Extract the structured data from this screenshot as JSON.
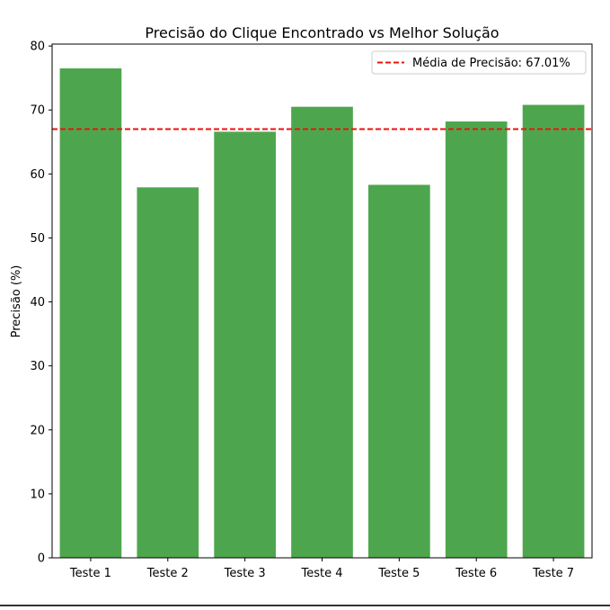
{
  "chart_data": {
    "type": "bar",
    "title": "Precisão do Clique Encontrado vs Melhor Solução",
    "xlabel": "",
    "ylabel": "Precisão (%)",
    "categories": [
      "Teste 1",
      "Teste 2",
      "Teste 3",
      "Teste 4",
      "Teste 5",
      "Teste 6",
      "Teste 7"
    ],
    "values": [
      76.5,
      57.9,
      66.6,
      70.5,
      58.3,
      68.2,
      70.8
    ],
    "ylim": [
      0,
      80.3
    ],
    "yticks": [
      0,
      10,
      20,
      30,
      40,
      50,
      60,
      70,
      80
    ],
    "bar_color": "#4da64d",
    "reference_line": {
      "value": 67.01,
      "color": "#e8140f",
      "style": "dashed",
      "label": "Média de Precisão: 67.01%"
    },
    "legend": {
      "placement": "top-right",
      "entries": [
        "Média de Precisão: 67.01%"
      ]
    },
    "grid": false
  }
}
